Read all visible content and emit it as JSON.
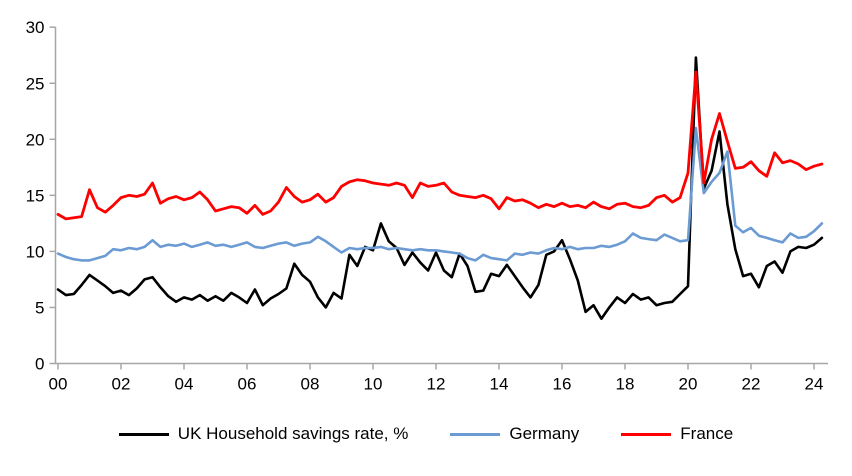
{
  "chart_data": {
    "type": "line",
    "title": "",
    "xlabel": "",
    "ylabel": "",
    "frequency": "quarterly",
    "x_start_year": 2000,
    "x_axis_tick_labels": [
      "00",
      "02",
      "04",
      "06",
      "08",
      "10",
      "12",
      "14",
      "16",
      "18",
      "20",
      "22",
      "24"
    ],
    "x_axis_tick_years": [
      2000,
      2002,
      2004,
      2006,
      2008,
      2010,
      2012,
      2014,
      2016,
      2018,
      2020,
      2022,
      2024
    ],
    "y_axis_tick_labels": [
      "0",
      "5",
      "10",
      "15",
      "20",
      "25",
      "30"
    ],
    "y_axis_tick_values": [
      0,
      5,
      10,
      15,
      20,
      25,
      30
    ],
    "ylim": [
      0,
      30
    ],
    "grid": "off",
    "legend_position": "bottom",
    "axis_color": "#A6A6A6",
    "label_color": "#000000",
    "series": [
      {
        "name": "UK Household savings rate, %",
        "color": "#000000",
        "stroke_width": 2.6,
        "values": [
          6.6,
          6.1,
          6.2,
          7.0,
          7.9,
          7.4,
          6.9,
          6.3,
          6.5,
          6.1,
          6.7,
          7.5,
          7.7,
          6.8,
          6.0,
          5.5,
          5.9,
          5.7,
          6.1,
          5.6,
          6.0,
          5.6,
          6.3,
          5.9,
          5.4,
          6.6,
          5.2,
          5.8,
          6.2,
          6.7,
          8.9,
          7.9,
          7.3,
          5.9,
          5.0,
          6.3,
          5.8,
          9.7,
          8.7,
          10.4,
          10.1,
          12.5,
          10.9,
          10.3,
          8.8,
          9.9,
          9.0,
          8.3,
          9.9,
          8.3,
          7.7,
          9.8,
          8.7,
          6.4,
          6.5,
          8.0,
          7.8,
          8.8,
          7.8,
          6.8,
          5.9,
          7.0,
          9.7,
          10.0,
          11.0,
          9.3,
          7.4,
          4.6,
          5.2,
          4.0,
          5.0,
          5.9,
          5.4,
          6.2,
          5.7,
          5.9,
          5.2,
          5.4,
          5.5,
          6.2,
          6.9,
          27.3,
          15.6,
          17.2,
          20.7,
          14.2,
          10.2,
          7.8,
          8.0,
          6.8,
          8.7,
          9.1,
          8.1,
          10.0,
          10.4,
          10.3,
          10.6,
          11.2
        ]
      },
      {
        "name": "Germany",
        "color": "#6B9BD2",
        "stroke_width": 2.6,
        "values": [
          9.8,
          9.5,
          9.3,
          9.2,
          9.2,
          9.4,
          9.6,
          10.2,
          10.1,
          10.3,
          10.2,
          10.4,
          11.0,
          10.4,
          10.6,
          10.5,
          10.7,
          10.4,
          10.6,
          10.8,
          10.5,
          10.6,
          10.4,
          10.6,
          10.8,
          10.4,
          10.3,
          10.5,
          10.7,
          10.8,
          10.5,
          10.7,
          10.8,
          11.3,
          10.9,
          10.4,
          9.9,
          10.3,
          10.2,
          10.3,
          10.3,
          10.4,
          10.2,
          10.3,
          10.2,
          10.1,
          10.2,
          10.1,
          10.1,
          10.0,
          9.9,
          9.8,
          9.4,
          9.2,
          9.7,
          9.4,
          9.3,
          9.2,
          9.8,
          9.7,
          9.9,
          9.8,
          10.1,
          10.3,
          10.2,
          10.4,
          10.2,
          10.3,
          10.3,
          10.5,
          10.4,
          10.6,
          10.9,
          11.6,
          11.2,
          11.1,
          11.0,
          11.5,
          11.2,
          10.9,
          11.0,
          21.0,
          15.2,
          16.2,
          17.0,
          18.9,
          12.3,
          11.7,
          12.1,
          11.4,
          11.2,
          11.0,
          10.8,
          11.6,
          11.2,
          11.3,
          11.8,
          12.5
        ]
      },
      {
        "name": "France",
        "color": "#FF0000",
        "stroke_width": 2.8,
        "values": [
          13.3,
          12.9,
          13.0,
          13.1,
          15.5,
          13.9,
          13.5,
          14.1,
          14.8,
          15.0,
          14.9,
          15.1,
          16.1,
          14.3,
          14.7,
          14.9,
          14.6,
          14.8,
          15.3,
          14.6,
          13.6,
          13.8,
          14.0,
          13.9,
          13.4,
          14.1,
          13.3,
          13.6,
          14.4,
          15.7,
          14.9,
          14.4,
          14.6,
          15.1,
          14.4,
          14.8,
          15.8,
          16.2,
          16.4,
          16.3,
          16.1,
          16.0,
          15.9,
          16.1,
          15.9,
          14.8,
          16.1,
          15.8,
          15.9,
          16.1,
          15.3,
          15.0,
          14.9,
          14.8,
          15.0,
          14.7,
          13.8,
          14.8,
          14.5,
          14.6,
          14.3,
          13.9,
          14.2,
          14.0,
          14.3,
          14.0,
          14.1,
          13.9,
          14.4,
          14.0,
          13.8,
          14.2,
          14.3,
          14.0,
          13.9,
          14.1,
          14.8,
          15.0,
          14.4,
          14.8,
          17.0,
          26.0,
          16.1,
          20.0,
          22.3,
          19.8,
          17.4,
          17.5,
          18.0,
          17.2,
          16.7,
          18.8,
          17.9,
          18.1,
          17.8,
          17.3,
          17.6,
          17.8
        ]
      }
    ]
  },
  "legend": {
    "items": [
      {
        "label": "UK Household savings rate, %",
        "color": "#000000"
      },
      {
        "label": "Germany",
        "color": "#6B9BD2"
      },
      {
        "label": "France",
        "color": "#FF0000"
      }
    ]
  }
}
